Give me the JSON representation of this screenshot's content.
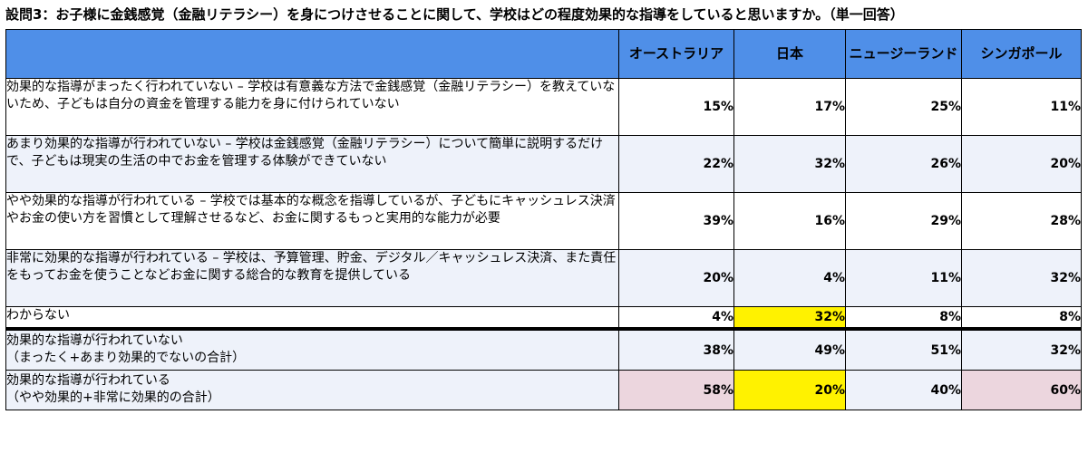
{
  "title": "設問3：お子様に金銭感覚（金融リテラシー）を身につけさせることに関して、学校はどの程度効果的な指導をしていると思いますか。（単一回答）",
  "columns": [
    "オーストラリア",
    "日本",
    "ニュージーランド",
    "シンガポール"
  ],
  "rows": [
    {
      "label": "効果的な指導がまったく行われていない – 学校は有意義な方法で金銭感覚（金融リテラシー）を教えていないため、子どもは自分の資金を管理する能力を身に付けられていない",
      "values": [
        "15%",
        "17%",
        "25%",
        "11%"
      ]
    },
    {
      "label": "あまり効果的な指導が行われていない – 学校は金銭感覚（金融リテラシー）について簡単に説明するだけで、子どもは現実の生活の中でお金を管理する体験ができていない",
      "values": [
        "22%",
        "32%",
        "26%",
        "20%"
      ]
    },
    {
      "label": "やや効果的な指導が行われている – 学校では基本的な概念を指導しているが、子どもにキャッシュレス決済やお金の使い方を習慣として理解させるなど、お金に関するもっと実用的な能力が必要",
      "values": [
        "39%",
        "16%",
        "29%",
        "28%"
      ]
    },
    {
      "label": "非常に効果的な指導が行われている – 学校は、予算管理、貯金、デジタル／キャッシュレス決済、また責任をもってお金を使うことなどお金に関する総合的な教育を提供している",
      "values": [
        "20%",
        "4%",
        "11%",
        "32%"
      ]
    },
    {
      "label": "わからない",
      "values": [
        "4%",
        "32%",
        "8%",
        "8%"
      ]
    }
  ],
  "summary_rows": [
    {
      "label_line1": "効果的な指導が行われていない",
      "label_line2": "（まったく+あまり効果的でないの合計）",
      "values": [
        "38%",
        "49%",
        "51%",
        "32%"
      ]
    },
    {
      "label_line1": "効果的な指導が行われている",
      "label_line2": "（やや効果的+非常に効果的の合計）",
      "values": [
        "58%",
        "20%",
        "40%",
        "60%"
      ]
    }
  ],
  "colors": {
    "header_blue": "#4f8fe8",
    "alt_row": "#eef2fa",
    "highlight_yellow": "#fff200",
    "highlight_pink": "#ecd6de"
  }
}
